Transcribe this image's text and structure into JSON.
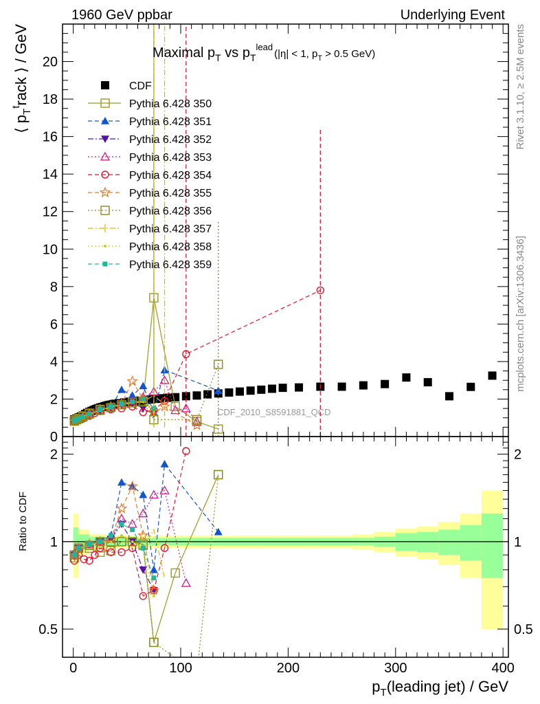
{
  "header": {
    "left": "1960 GeV ppbar",
    "right": "Underlying Event"
  },
  "side_labels": {
    "rivet": "Rivet 3.1.10, ≥ 2.5M events",
    "mcplots": "mcplots.cern.ch [arXiv:1306.3436]"
  },
  "analysis_tag": "CDF_2010_S8591881_QCD",
  "chart_data": [
    {
      "type": "scatter",
      "panel": "main",
      "title": "Maximal p_T vs p_T^lead (|η| < 1, p_T > 0.5 GeV)",
      "title_parts": {
        "main": "Maximal p",
        "sub_T": "T",
        "vs": " vs p",
        "sup_lead": "lead",
        "cuts": "(|η| < 1, p",
        "cuts_end": " > 0.5 GeV)"
      },
      "xlabel": "p_T(leading jet) / GeV",
      "ylabel": "⟨ p_T^track ⟩ / GeV",
      "xlim": [
        -10,
        405
      ],
      "ylim": [
        0,
        22
      ],
      "xticks": [
        0,
        100,
        200,
        300,
        400
      ],
      "yticks": [
        0,
        2,
        4,
        6,
        8,
        10,
        12,
        14,
        16,
        18,
        20
      ],
      "legend_position": "top-left",
      "series": [
        {
          "name": "CDF",
          "color": "#000000",
          "marker": "square-filled",
          "line": "none",
          "x": [
            1,
            3,
            5,
            7,
            9,
            11,
            13,
            15,
            17,
            19,
            21,
            23,
            25,
            27,
            29,
            31,
            33,
            35,
            37,
            39,
            42.5,
            47.5,
            52.5,
            57.5,
            62.5,
            67.5,
            72.5,
            77.5,
            82.5,
            87.5,
            95,
            105,
            115,
            125,
            135,
            145,
            155,
            165,
            175,
            185,
            195,
            210,
            230,
            250,
            270,
            290,
            310,
            330,
            350,
            370,
            390
          ],
          "y": [
            0.92,
            0.97,
            1.02,
            1.07,
            1.13,
            1.2,
            1.26,
            1.32,
            1.37,
            1.42,
            1.47,
            1.51,
            1.55,
            1.58,
            1.62,
            1.65,
            1.68,
            1.7,
            1.73,
            1.75,
            1.78,
            1.82,
            1.86,
            1.89,
            1.92,
            1.95,
            1.98,
            2.01,
            2.04,
            2.07,
            2.1,
            2.15,
            2.19,
            2.25,
            2.3,
            2.35,
            2.4,
            2.45,
            2.5,
            2.55,
            2.6,
            2.62,
            2.66,
            2.66,
            2.73,
            2.8,
            3.15,
            2.9,
            2.15,
            2.65,
            3.25
          ]
        },
        {
          "name": "Pythia 6.428 350",
          "color": "#9a9a1c",
          "marker": "square-open",
          "line": "solid",
          "x": [
            1,
            3,
            5,
            9,
            15,
            25,
            35,
            45,
            55,
            65,
            75,
            95,
            115,
            135
          ],
          "y": [
            0.82,
            0.9,
            0.97,
            1.1,
            1.25,
            1.45,
            1.55,
            1.7,
            1.85,
            1.9,
            7.4,
            1.6,
            0.8,
            0.4
          ]
        },
        {
          "name": "Pythia 6.428 351",
          "color": "#1155cc",
          "marker": "triangle-up-filled",
          "line": "dashed",
          "x": [
            1,
            3,
            5,
            9,
            15,
            25,
            35,
            45,
            55,
            65,
            75,
            85,
            135
          ],
          "y": [
            0.85,
            0.9,
            0.95,
            1.05,
            1.2,
            1.45,
            1.6,
            2.5,
            2.2,
            2.7,
            1.3,
            3.55,
            2.45
          ]
        },
        {
          "name": "Pythia 6.428 352",
          "color": "#5511aa",
          "marker": "triangle-down-filled",
          "line": "dashdot",
          "x": [
            1,
            3,
            5,
            9,
            15,
            25,
            35,
            45,
            55,
            65,
            75
          ],
          "y": [
            0.85,
            0.9,
            0.95,
            1.05,
            1.2,
            1.4,
            1.55,
            1.7,
            1.8,
            1.5,
            1.2
          ]
        },
        {
          "name": "Pythia 6.428 353",
          "color": "#cc1f8a",
          "marker": "triangle-up-open",
          "line": "dotted",
          "x": [
            1,
            3,
            5,
            9,
            15,
            25,
            35,
            45,
            55,
            65,
            75,
            85,
            95,
            105,
            115
          ],
          "y": [
            0.85,
            0.9,
            0.95,
            1.05,
            1.2,
            1.4,
            1.55,
            1.75,
            1.9,
            2.1,
            2.4,
            3.0,
            1.4,
            1.5,
            0.8
          ]
        },
        {
          "name": "Pythia 6.428 354",
          "color": "#e8132c",
          "marker": "circle-open",
          "line": "dashed",
          "x": [
            1,
            3,
            5,
            9,
            15,
            20,
            25,
            35,
            45,
            55,
            65,
            75,
            85,
            105,
            230
          ],
          "y": [
            0.8,
            0.85,
            0.9,
            0.95,
            1.1,
            1.25,
            1.35,
            1.45,
            1.5,
            1.6,
            1.3,
            1.4,
            1.9,
            4.4,
            7.8
          ]
        },
        {
          "name": "Pythia 6.428 355",
          "color": "#ee7722",
          "marker": "star-open",
          "line": "dashed",
          "x": [
            1,
            3,
            5,
            9,
            15,
            25,
            35,
            45,
            55,
            65,
            75,
            85,
            115
          ],
          "y": [
            0.85,
            0.9,
            0.95,
            1.05,
            1.2,
            1.45,
            1.6,
            1.75,
            2.95,
            2.0,
            1.3,
            1.6,
            0.6
          ]
        },
        {
          "name": "Pythia 6.428 356",
          "color": "#8a8a1e",
          "marker": "square-open",
          "line": "dotted",
          "x": [
            1,
            3,
            5,
            9,
            15,
            25,
            35,
            45,
            55,
            65,
            75,
            115,
            135
          ],
          "y": [
            0.85,
            0.9,
            0.95,
            1.05,
            1.2,
            1.4,
            1.55,
            1.7,
            1.8,
            1.85,
            0.9,
            0.9,
            3.85
          ]
        },
        {
          "name": "Pythia 6.428 357",
          "color": "#ddbb00",
          "marker": "none",
          "line": "dashdot",
          "x": [
            1,
            3,
            5,
            9,
            15,
            25,
            35,
            45,
            55,
            65,
            75,
            85
          ],
          "y": [
            0.85,
            0.9,
            0.95,
            1.05,
            1.2,
            1.4,
            1.55,
            1.7,
            1.8,
            1.85,
            2.2,
            1.7
          ]
        },
        {
          "name": "Pythia 6.428 358",
          "color": "#c8d21e",
          "marker": "dot",
          "line": "dotted",
          "x": [
            1,
            3,
            5,
            9,
            15,
            25,
            35,
            45,
            55,
            65,
            75
          ],
          "y": [
            0.85,
            0.9,
            0.95,
            1.05,
            1.2,
            1.4,
            1.55,
            1.7,
            1.8,
            1.85,
            1.3
          ]
        },
        {
          "name": "Pythia 6.428 359",
          "color": "#1db89a",
          "marker": "square-filled-small",
          "line": "dashed",
          "x": [
            1,
            3,
            5,
            9,
            15,
            25,
            35,
            45,
            55,
            65,
            75
          ],
          "y": [
            0.85,
            0.9,
            0.95,
            1.05,
            1.2,
            1.45,
            1.6,
            1.75,
            1.85,
            2.0,
            1.5
          ]
        }
      ],
      "extra_error_bars": [
        {
          "series": "Pythia 6.428 350",
          "x": 75,
          "ylow": 0.5,
          "yhigh": 22
        },
        {
          "series": "Pythia 6.428 357",
          "x": 75,
          "ylow": 0.5,
          "yhigh": 22
        },
        {
          "series": "Pythia 6.428 357",
          "x": 85,
          "ylow": 0.5,
          "yhigh": 22
        },
        {
          "series": "Pythia 6.428 354",
          "x": 105,
          "ylow": 0,
          "yhigh": 22
        },
        {
          "series": "Pythia 6.428 354",
          "x": 230,
          "ylow": 0,
          "yhigh": 16.5
        },
        {
          "series": "Pythia 6.428 356",
          "x": 135,
          "ylow": 0,
          "yhigh": 11.5
        }
      ]
    },
    {
      "type": "scatter",
      "panel": "ratio",
      "ylabel": "Ratio to CDF",
      "xlabel": "p_T(leading jet) / GeV",
      "xlim": [
        -10,
        405
      ],
      "ylim": [
        0.4,
        2.3
      ],
      "xticks": [
        0,
        100,
        200,
        300,
        400
      ],
      "yticks": [
        0.5,
        1,
        2
      ],
      "reference_line": 1,
      "bands": {
        "x_edges": [
          0,
          5,
          15,
          30,
          50,
          70,
          90,
          110,
          130,
          150,
          170,
          190,
          220,
          240,
          260,
          280,
          300,
          320,
          340,
          360,
          380,
          400
        ],
        "inner": [
          0.12,
          0.06,
          0.04,
          0.03,
          0.03,
          0.03,
          0.03,
          0.03,
          0.03,
          0.03,
          0.03,
          0.03,
          0.03,
          0.03,
          0.03,
          0.04,
          0.07,
          0.08,
          0.1,
          0.14,
          0.25
        ],
        "outer": [
          0.25,
          0.1,
          0.06,
          0.05,
          0.05,
          0.05,
          0.05,
          0.05,
          0.05,
          0.05,
          0.05,
          0.05,
          0.05,
          0.05,
          0.06,
          0.08,
          0.11,
          0.13,
          0.17,
          0.25,
          0.5
        ]
      },
      "series": [
        {
          "name": "Pythia 6.428 350",
          "x": [
            1,
            5,
            15,
            25,
            35,
            45,
            55,
            65,
            75,
            95,
            135
          ],
          "y": [
            0.88,
            0.95,
            0.95,
            0.92,
            0.93,
            1.0,
            1.0,
            0.98,
            0.45,
            0.78,
            1.7
          ]
        },
        {
          "name": "Pythia 6.428 351",
          "x": [
            1,
            5,
            15,
            25,
            35,
            45,
            55,
            65,
            75,
            85,
            135
          ],
          "y": [
            0.92,
            0.95,
            0.98,
            1.0,
            1.05,
            1.6,
            1.55,
            1.45,
            0.8,
            1.85,
            1.08
          ]
        },
        {
          "name": "Pythia 6.428 352",
          "x": [
            1,
            5,
            15,
            25,
            35,
            45,
            55,
            65,
            75
          ],
          "y": [
            0.9,
            0.95,
            0.98,
            1.0,
            1.02,
            1.15,
            1.0,
            0.8,
            0.68
          ]
        },
        {
          "name": "Pythia 6.428 353",
          "x": [
            1,
            5,
            15,
            25,
            35,
            45,
            55,
            65,
            75,
            85,
            105
          ],
          "y": [
            0.9,
            0.95,
            0.98,
            1.0,
            1.02,
            1.2,
            1.15,
            1.25,
            1.45,
            1.5,
            0.72
          ]
        },
        {
          "name": "Pythia 6.428 354",
          "x": [
            1,
            5,
            10,
            15,
            20,
            25,
            35,
            45,
            55,
            65,
            75,
            85,
            105
          ],
          "y": [
            0.86,
            0.9,
            0.87,
            0.86,
            0.9,
            0.95,
            0.92,
            0.92,
            0.95,
            0.65,
            0.68,
            0.95,
            2.05
          ]
        },
        {
          "name": "Pythia 6.428 355",
          "x": [
            1,
            5,
            15,
            25,
            35,
            45,
            55,
            65,
            75
          ],
          "y": [
            0.9,
            0.95,
            0.98,
            1.0,
            1.02,
            1.3,
            1.55,
            1.05,
            0.68
          ]
        },
        {
          "name": "Pythia 6.428 356",
          "x": [
            1,
            5,
            15,
            25,
            35,
            45,
            55,
            65,
            75,
            115,
            135
          ],
          "y": [
            0.9,
            0.95,
            0.97,
            1.0,
            1.0,
            1.0,
            1.0,
            0.97,
            0.45,
            0.35,
            1.7
          ]
        },
        {
          "name": "Pythia 6.428 357",
          "x": [
            1,
            5,
            15,
            25,
            35,
            45,
            55,
            65,
            75,
            85
          ],
          "y": [
            0.9,
            0.95,
            0.97,
            1.0,
            1.0,
            1.05,
            1.0,
            0.95,
            1.1,
            0.75
          ]
        },
        {
          "name": "Pythia 6.428 358",
          "x": [
            1,
            5,
            15,
            25,
            35,
            45,
            55,
            65,
            75
          ],
          "y": [
            0.9,
            0.95,
            0.97,
            1.0,
            1.0,
            1.05,
            1.0,
            0.95,
            0.65
          ]
        },
        {
          "name": "Pythia 6.428 359",
          "x": [
            1,
            5,
            15,
            25,
            35,
            45,
            55,
            65,
            75
          ],
          "y": [
            0.9,
            0.95,
            0.98,
            1.0,
            1.05,
            1.15,
            1.1,
            0.95,
            0.75
          ]
        }
      ]
    }
  ]
}
